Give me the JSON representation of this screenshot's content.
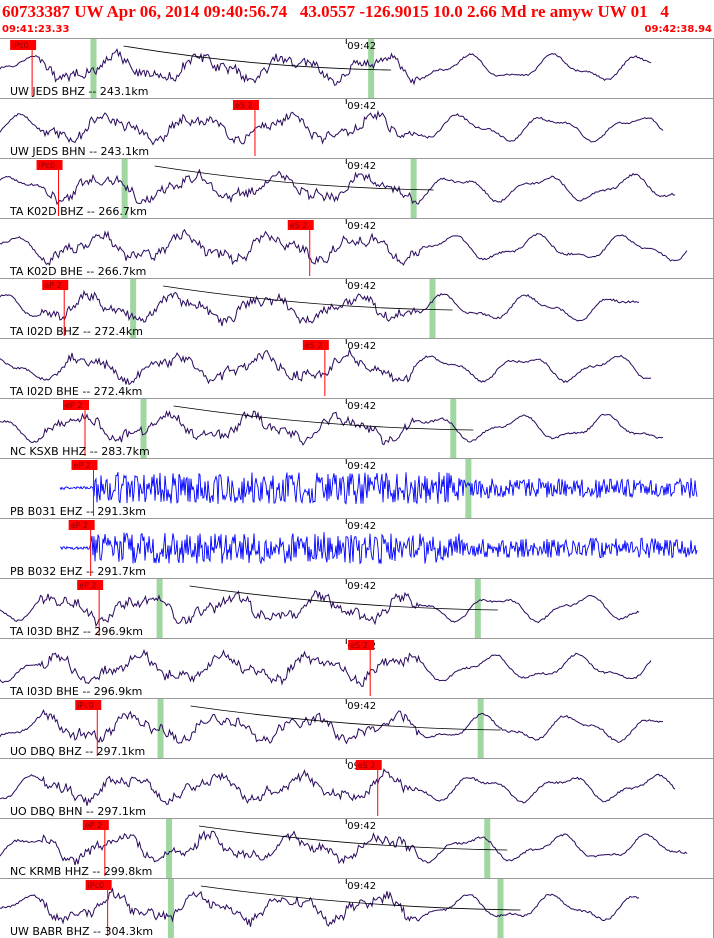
{
  "header": {
    "title": "60733387 UW Apr 06, 2014 09:40:56.74   43.0557 -126.9015 10.0 2.66 Md re amyw UW 01   4",
    "start_time": "09:41:23.33",
    "end_time": "09:42:38.94"
  },
  "colors": {
    "trace_default": "#2a0a5e",
    "trace_highfreq": "#0000ff",
    "pick": "#ff0000",
    "pick_label_bg": "#ff0000",
    "window": "#8fd08f",
    "grid": "#999999",
    "text": "#000000",
    "moveout": "#000000"
  },
  "chart_data": {
    "type": "line",
    "x_range_seconds": [
      0,
      75.61
    ],
    "minute_mark": {
      "label": "09:42",
      "time_s": 36.67
    },
    "traces": [
      {
        "label": "UW JEDS BHZ -- 243.1km",
        "pick_label": "iPc0",
        "pick_time_s": 3.4,
        "window_times_s": [
          9.9,
          39.3
        ],
        "blue": false,
        "seed": 1
      },
      {
        "label": "UW JEDS BHN -- 243.1km",
        "pick_label": "eS 2",
        "pick_time_s": 27.0,
        "window_times_s": [],
        "blue": false,
        "seed": 2
      },
      {
        "label": "TA K02D BHZ -- 266.7km",
        "pick_label": "iPc0",
        "pick_time_s": 6.2,
        "window_times_s": [
          13.2,
          43.8
        ],
        "blue": false,
        "seed": 3
      },
      {
        "label": "TA K02D BHE -- 266.7km",
        "pick_label": "eS 2",
        "pick_time_s": 32.8,
        "window_times_s": [],
        "blue": false,
        "seed": 4
      },
      {
        "label": "TA I02D BHZ -- 272.4km",
        "pick_label": "eP 2",
        "pick_time_s": 6.8,
        "window_times_s": [
          14.1,
          45.8
        ],
        "blue": false,
        "seed": 5
      },
      {
        "label": "TA I02D BHE -- 272.4km",
        "pick_label": "eS 2",
        "pick_time_s": 34.4,
        "window_times_s": [],
        "blue": false,
        "seed": 6
      },
      {
        "label": "NC KSXB HHZ -- 283.7km",
        "pick_label": "eP 2",
        "pick_time_s": 9.0,
        "window_times_s": [
          15.2,
          48.0
        ],
        "blue": false,
        "seed": 7
      },
      {
        "label": "PB B031 EHZ -- 291.3km",
        "pick_label": "eP 2",
        "pick_time_s": 9.9,
        "window_times_s": [
          49.6
        ],
        "blue": true,
        "seed": 8
      },
      {
        "label": "PB B032 EHZ -- 291.7km",
        "pick_label": "eP 2",
        "pick_time_s": 9.6,
        "window_times_s": [],
        "blue": true,
        "seed": 9
      },
      {
        "label": "TA I03D BHZ -- 296.9km",
        "pick_label": "eP 2",
        "pick_time_s": 10.5,
        "window_times_s": [
          16.9,
          50.6
        ],
        "blue": false,
        "seed": 10
      },
      {
        "label": "TA I03D BHE -- 296.9km",
        "pick_label": "eS 2",
        "pick_time_s": 39.2,
        "window_times_s": [],
        "blue": false,
        "seed": 11
      },
      {
        "label": "UO DBQ BHZ -- 297.1km",
        "pick_label": "iPc0",
        "pick_time_s": 10.3,
        "window_times_s": [
          17.0,
          50.9
        ],
        "blue": false,
        "seed": 12
      },
      {
        "label": "UO DBQ BHN -- 297.1km",
        "pick_label": "eS 2",
        "pick_time_s": 40.0,
        "window_times_s": [],
        "blue": false,
        "seed": 13
      },
      {
        "label": "NC KRMB HHZ -- 299.8km",
        "pick_label": "eP 2",
        "pick_time_s": 11.1,
        "window_times_s": [
          17.9,
          51.6
        ],
        "blue": false,
        "seed": 14
      },
      {
        "label": "UW BABR BHZ -- 304.3km",
        "pick_label": "iPc0",
        "pick_time_s": 11.4,
        "window_times_s": [
          18.1,
          53.0
        ],
        "blue": false,
        "seed": 15
      }
    ]
  }
}
